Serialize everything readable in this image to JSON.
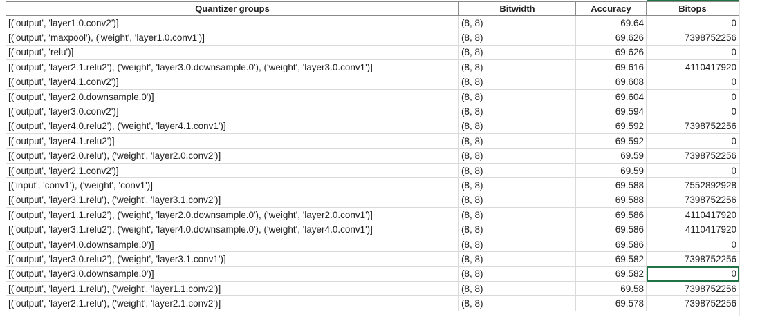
{
  "headers": [
    "Quantizer groups",
    "Bitwidth",
    "Accuracy",
    "Bitops"
  ],
  "rows": [
    [
      "[('output', 'layer1.0.conv2')]",
      "(8, 8)",
      "69.64",
      "0"
    ],
    [
      "[('output', 'maxpool'), ('weight', 'layer1.0.conv1')]",
      "(8, 8)",
      "69.626",
      "7398752256"
    ],
    [
      "[('output', 'relu')]",
      "(8, 8)",
      "69.626",
      "0"
    ],
    [
      "[('output', 'layer2.1.relu2'), ('weight', 'layer3.0.downsample.0'), ('weight', 'layer3.0.conv1')]",
      "(8, 8)",
      "69.616",
      "4110417920"
    ],
    [
      "[('output', 'layer4.1.conv2')]",
      "(8, 8)",
      "69.608",
      "0"
    ],
    [
      "[('output', 'layer2.0.downsample.0')]",
      "(8, 8)",
      "69.604",
      "0"
    ],
    [
      "[('output', 'layer3.0.conv2')]",
      "(8, 8)",
      "69.594",
      "0"
    ],
    [
      "[('output', 'layer4.0.relu2'), ('weight', 'layer4.1.conv1')]",
      "(8, 8)",
      "69.592",
      "7398752256"
    ],
    [
      "[('output', 'layer4.1.relu2')]",
      "(8, 8)",
      "69.592",
      "0"
    ],
    [
      "[('output', 'layer2.0.relu'), ('weight', 'layer2.0.conv2')]",
      "(8, 8)",
      "69.59",
      "7398752256"
    ],
    [
      "[('output', 'layer2.1.conv2')]",
      "(8, 8)",
      "69.59",
      "0"
    ],
    [
      "[('input', 'conv1'), ('weight', 'conv1')]",
      "(8, 8)",
      "69.588",
      "7552892928"
    ],
    [
      "[('output', 'layer3.1.relu'), ('weight', 'layer3.1.conv2')]",
      "(8, 8)",
      "69.588",
      "7398752256"
    ],
    [
      "[('output', 'layer1.1.relu2'), ('weight', 'layer2.0.downsample.0'), ('weight', 'layer2.0.conv1')]",
      "(8, 8)",
      "69.586",
      "4110417920"
    ],
    [
      "[('output', 'layer3.1.relu2'), ('weight', 'layer4.0.downsample.0'), ('weight', 'layer4.0.conv1')]",
      "(8, 8)",
      "69.586",
      "4110417920"
    ],
    [
      "[('output', 'layer4.0.downsample.0')]",
      "(8, 8)",
      "69.586",
      "0"
    ],
    [
      "[('output', 'layer3.0.relu2'), ('weight', 'layer3.1.conv1')]",
      "(8, 8)",
      "69.582",
      "7398752256"
    ],
    [
      "[('output', 'layer3.0.downsample.0')]",
      "(8, 8)",
      "69.582",
      "0"
    ],
    [
      "[('output', 'layer1.1.relu'), ('weight', 'layer1.1.conv2')]",
      "(8, 8)",
      "69.58",
      "7398752256"
    ],
    [
      "[('output', 'layer2.1.relu'), ('weight', 'layer2.1.conv2')]",
      "(8, 8)",
      "69.578",
      "7398752256"
    ]
  ],
  "selected_cell": {
    "row": 17,
    "column": "Bitops"
  },
  "colors": {
    "selection": "#217346",
    "grid": "#dadada"
  }
}
